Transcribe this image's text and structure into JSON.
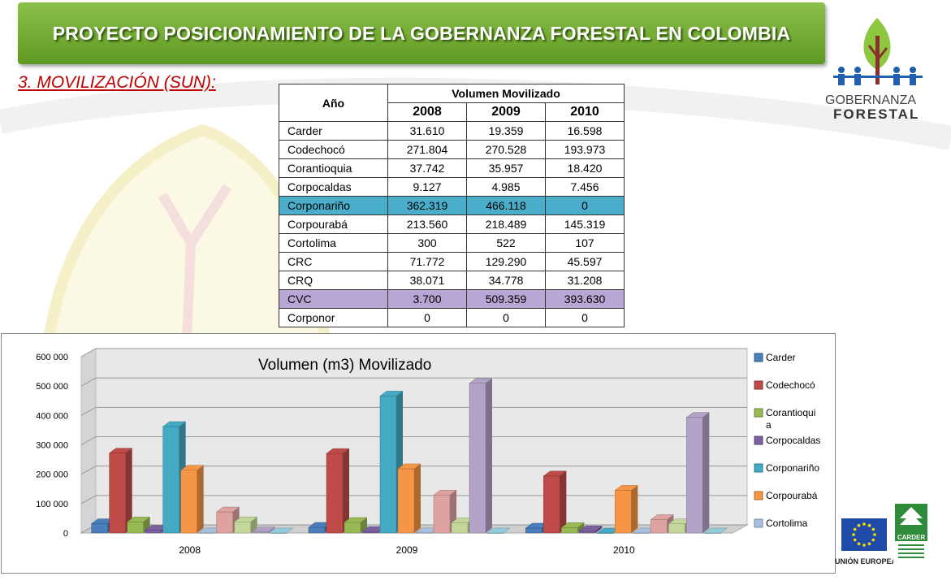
{
  "header": {
    "title": "PROYECTO POSICIONAMIENTO DE LA GOBERNANZA FORESTAL EN COLOMBIA"
  },
  "section": {
    "title": "3. MOVILIZACIÓN (SUN):"
  },
  "logo": {
    "line1": "GOBERNANZA",
    "line2": "FORESTAL"
  },
  "footer_logos": {
    "eu_label": "UNIÓN EUROPEA",
    "carder_label": "CARDER"
  },
  "colors": {
    "banner": "#7ab03a",
    "subtitle": "#c00000",
    "highlight_blue": "#4aaecb",
    "highlight_purple": "#b8a6d4"
  },
  "table": {
    "col_anio": "Año",
    "col_group": "Volumen Movilizado",
    "years": [
      "2008",
      "2009",
      "2010"
    ],
    "rows": [
      {
        "name": "Carder",
        "values": [
          "31.610",
          "19.359",
          "16.598"
        ]
      },
      {
        "name": "Codechocó",
        "values": [
          "271.804",
          "270.528",
          "193.973"
        ]
      },
      {
        "name": "Corantioquia",
        "values": [
          "37.742",
          "35.957",
          "18.420"
        ]
      },
      {
        "name": "Corpocaldas",
        "values": [
          "9.127",
          "4.985",
          "7.456"
        ]
      },
      {
        "name": "Corponariño",
        "values": [
          "362.319",
          "466.118",
          "0"
        ],
        "highlight": "blue"
      },
      {
        "name": "Corpourabá",
        "values": [
          "213.560",
          "218.489",
          "145.319"
        ]
      },
      {
        "name": "Cortolima",
        "values": [
          "300",
          "522",
          "107"
        ]
      },
      {
        "name": "CRC",
        "values": [
          "71.772",
          "129.290",
          "45.597"
        ]
      },
      {
        "name": "CRQ",
        "values": [
          "38.071",
          "34.778",
          "31.208"
        ]
      },
      {
        "name": "CVC",
        "values": [
          "3.700",
          "509.359",
          "393.630"
        ],
        "highlight": "purple"
      },
      {
        "name": "Corponor",
        "values": [
          "0",
          "0",
          "0"
        ]
      }
    ]
  },
  "chart_data": {
    "type": "bar",
    "title": "Volumen (m3) Movilizado",
    "categories": [
      "2008",
      "2009",
      "2010"
    ],
    "ylim": [
      0,
      600000
    ],
    "yticks": [
      0,
      100000,
      200000,
      300000,
      400000,
      500000,
      600000
    ],
    "ytick_labels": [
      "0",
      "100 000",
      "200 000",
      "300 000",
      "400 000",
      "500 000",
      "600 000"
    ],
    "grid": true,
    "legend": "right",
    "series": [
      {
        "name": "Carder",
        "values": [
          31610,
          19359,
          16598
        ],
        "color": "#4a7ebb"
      },
      {
        "name": "Codechocó",
        "values": [
          271804,
          270528,
          193973
        ],
        "color": "#be4b48"
      },
      {
        "name": "Corantioquia",
        "values": [
          37742,
          35957,
          18420
        ],
        "color": "#98b954"
      },
      {
        "name": "Corpocaldas",
        "values": [
          9127,
          4985,
          7456
        ],
        "color": "#7d60a0"
      },
      {
        "name": "Corponariño",
        "values": [
          362319,
          466118,
          0
        ],
        "color": "#46aac5"
      },
      {
        "name": "Corpourabá",
        "values": [
          213560,
          218489,
          145319
        ],
        "color": "#f69546"
      },
      {
        "name": "Cortolima",
        "values": [
          300,
          522,
          107
        ],
        "color": "#a7c0de"
      },
      {
        "name": "",
        "values": [
          71772,
          129290,
          45597
        ],
        "color": "#dea3a1"
      },
      {
        "name": "",
        "values": [
          38071,
          34778,
          31208
        ],
        "color": "#c4d79b"
      },
      {
        "name": "",
        "values": [
          3700,
          509359,
          393630
        ],
        "color": "#b3a2c7"
      },
      {
        "name": "",
        "values": [
          0,
          0,
          0
        ],
        "color": "#93cddd"
      }
    ],
    "legend_entries": [
      {
        "label": "Carder",
        "color": "#4a7ebb"
      },
      {
        "label": "Codechocó",
        "color": "#be4b48"
      },
      {
        "label": "Corantioqui",
        "label2": "a",
        "color": "#98b954"
      },
      {
        "label": "Corpocaldas",
        "color": "#7d60a0"
      },
      {
        "label": "Corponariño",
        "color": "#46aac5"
      },
      {
        "label": "Corpourabá",
        "color": "#f69546"
      },
      {
        "label": "Cortolima",
        "color": "#a7c0de"
      }
    ]
  }
}
